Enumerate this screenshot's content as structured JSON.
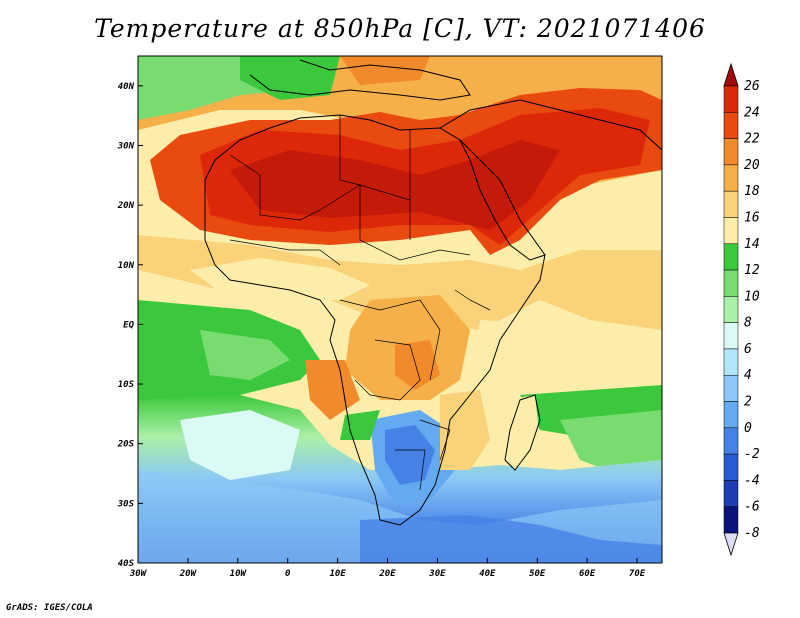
{
  "title": "Temperature at 850hPa [C], VT: 2021071406",
  "credit": "GrADS: IGES/COLA",
  "map": {
    "lon_labels": [
      "30W",
      "20W",
      "10W",
      "0",
      "10E",
      "20E",
      "30E",
      "40E",
      "50E",
      "60E",
      "70E"
    ],
    "lat_labels": [
      "40N",
      "30N",
      "20N",
      "10N",
      "EQ",
      "10S",
      "20S",
      "30S",
      "40S"
    ],
    "lon_range": [
      -30,
      75
    ],
    "lat_range": [
      -40,
      45
    ]
  },
  "colorbar": {
    "labels": [
      "26",
      "24",
      "22",
      "20",
      "18",
      "16",
      "14",
      "12",
      "10",
      "8",
      "6",
      "4",
      "2",
      "0",
      "-2",
      "-4",
      "-6",
      "-8"
    ],
    "colors": [
      "#a50a0a",
      "#dc2808",
      "#e84a10",
      "#f08a2a",
      "#f6b04a",
      "#fad27a",
      "#fceeaa",
      "#3cc83c",
      "#78dc70",
      "#aaf0a8",
      "#dcfaf5",
      "#b4e6fa",
      "#8cc8f5",
      "#64aaf0",
      "#4682e6",
      "#2a5ad2",
      "#1e3cb4",
      "#0a1478"
    ]
  }
}
